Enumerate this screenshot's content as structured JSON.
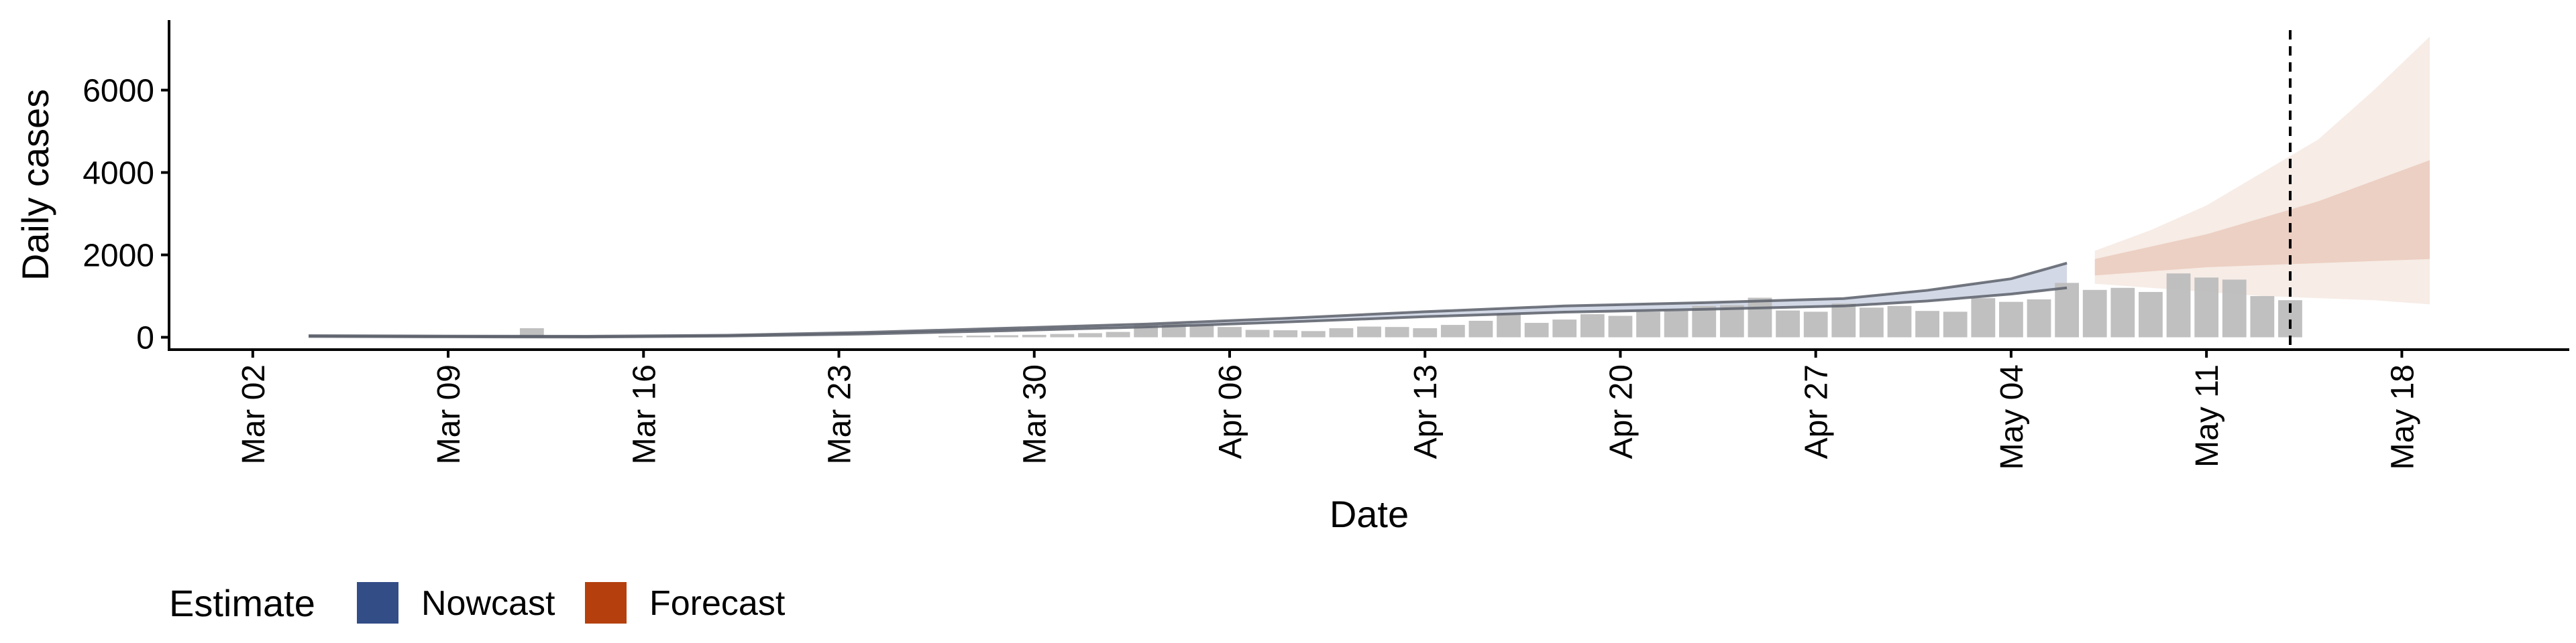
{
  "chart_data": {
    "type": "bar",
    "xlabel": "Date",
    "ylabel": "Daily cases",
    "ylim": [
      -300,
      7700
    ],
    "y_ticks": [
      0,
      2000,
      4000,
      6000
    ],
    "y_tick_labels": [
      "0",
      "2000",
      "4000",
      "6000"
    ],
    "x_ticks": [
      "2020-03-02",
      "2020-03-09",
      "2020-03-16",
      "2020-03-23",
      "2020-03-30",
      "2020-04-06",
      "2020-04-13",
      "2020-04-20",
      "2020-04-27",
      "2020-05-04",
      "2020-05-11",
      "2020-05-18"
    ],
    "x_tick_labels": [
      "Mar 02",
      "Mar 09",
      "Mar 16",
      "Mar 23",
      "Mar 30",
      "Apr 06",
      "Apr 13",
      "Apr 20",
      "Apr 27",
      "May 04",
      "May 11",
      "May 18"
    ],
    "xlim": [
      "2020-02-28",
      "2020-05-24"
    ],
    "grid": false,
    "reported_cases": {
      "color": "#bdbdbd",
      "dates": [
        "2020-03-12",
        "2020-03-27",
        "2020-03-28",
        "2020-03-29",
        "2020-03-30",
        "2020-03-31",
        "2020-04-01",
        "2020-04-02",
        "2020-04-03",
        "2020-04-04",
        "2020-04-05",
        "2020-04-06",
        "2020-04-07",
        "2020-04-08",
        "2020-04-09",
        "2020-04-10",
        "2020-04-11",
        "2020-04-12",
        "2020-04-13",
        "2020-04-14",
        "2020-04-15",
        "2020-04-16",
        "2020-04-17",
        "2020-04-18",
        "2020-04-19",
        "2020-04-20",
        "2020-04-21",
        "2020-04-22",
        "2020-04-23",
        "2020-04-24",
        "2020-04-25",
        "2020-04-26",
        "2020-04-27",
        "2020-04-28",
        "2020-04-29",
        "2020-04-30",
        "2020-05-01",
        "2020-05-02",
        "2020-05-03",
        "2020-05-04",
        "2020-05-05",
        "2020-05-06",
        "2020-05-07",
        "2020-05-08",
        "2020-05-09",
        "2020-05-10",
        "2020-05-11",
        "2020-05-12",
        "2020-05-13",
        "2020-05-14"
      ],
      "values": [
        220,
        30,
        40,
        50,
        60,
        80,
        100,
        130,
        310,
        320,
        300,
        250,
        180,
        170,
        150,
        220,
        260,
        250,
        220,
        300,
        400,
        580,
        350,
        430,
        560,
        520,
        620,
        640,
        760,
        780,
        960,
        650,
        620,
        820,
        720,
        760,
        640,
        620,
        950,
        860,
        920,
        1320,
        1150,
        1200,
        1100,
        1550,
        1450,
        1400,
        1000,
        900
      ]
    },
    "series": [
      {
        "name": "Nowcast",
        "color": "#334d87",
        "x": [
          "2020-03-04",
          "2020-03-09",
          "2020-03-14",
          "2020-03-19",
          "2020-03-24",
          "2020-03-29",
          "2020-04-03",
          "2020-04-08",
          "2020-04-13",
          "2020-04-18",
          "2020-04-23",
          "2020-04-28",
          "2020-05-01",
          "2020-05-04",
          "2020-05-06"
        ],
        "lower": [
          20,
          10,
          5,
          30,
          80,
          160,
          250,
          370,
          500,
          610,
          680,
          760,
          880,
          1050,
          1200
        ],
        "upper": [
          40,
          30,
          25,
          50,
          120,
          220,
          320,
          460,
          620,
          760,
          840,
          940,
          1140,
          1420,
          1800
        ]
      },
      {
        "name": "Forecast",
        "color": "#b5400e",
        "x": [
          "2020-05-07",
          "2020-05-09",
          "2020-05-11",
          "2020-05-13",
          "2020-05-15",
          "2020-05-17",
          "2020-05-19"
        ],
        "lower_outer": [
          1300,
          1200,
          1100,
          1000,
          950,
          900,
          800
        ],
        "upper_outer": [
          2100,
          2600,
          3200,
          4000,
          4800,
          6000,
          7300
        ],
        "lower_inner": [
          1500,
          1600,
          1700,
          1750,
          1800,
          1850,
          1900
        ],
        "upper_inner": [
          1900,
          2200,
          2500,
          2900,
          3300,
          3800,
          4300
        ]
      }
    ],
    "vline": "2020-05-14",
    "legend": {
      "title": "Estimate",
      "position": "bottom-left",
      "items": [
        "Nowcast",
        "Forecast"
      ]
    }
  }
}
